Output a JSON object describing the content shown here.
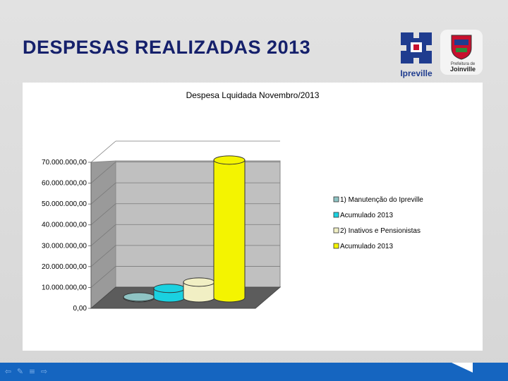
{
  "slide": {
    "title": "DESPESAS REALIZADAS 2013",
    "logo_ipreville_text": "Ipreville",
    "logo_joinville_line1": "Prefeitura de",
    "logo_joinville_line2": "Joinville"
  },
  "nav": {
    "icons": [
      "arrow-left-icon",
      "pen-icon",
      "menu-icon",
      "arrow-right-icon"
    ]
  },
  "chart_data": {
    "type": "bar",
    "style": "3d-cylinder",
    "title": "Despesa Lquidada Novembro/2013",
    "xlabel": "",
    "ylabel": "",
    "ylim": [
      0,
      70000000
    ],
    "yticks": [
      0,
      10000000,
      20000000,
      30000000,
      40000000,
      50000000,
      60000000,
      70000000
    ],
    "ytick_labels": [
      "0,00",
      "10.000.000,00",
      "20.000.000,00",
      "30.000.000,00",
      "40.000.000,00",
      "50.000.000,00",
      "60.000.000,00",
      "70.000.000,00"
    ],
    "grid": true,
    "legend_position": "right",
    "series": [
      {
        "name": "1) Manutenção do Ipreville",
        "value": 400000,
        "color": "#8fc4c4"
      },
      {
        "name": "Acumulado 2013",
        "value": 4500000,
        "color": "#1ad1e0"
      },
      {
        "name": "2) Inativos e Pensionistas",
        "value": 7500000,
        "color": "#f1efc4"
      },
      {
        "name": "Acumulado 2013",
        "value": 66000000,
        "color": "#f4f400"
      }
    ]
  }
}
